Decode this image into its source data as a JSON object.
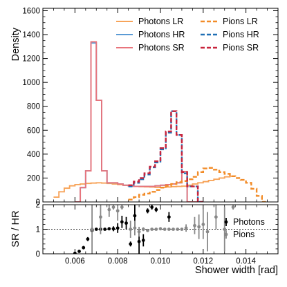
{
  "chart_data": [
    {
      "type": "line",
      "panel": "main",
      "xlabel": "Shower width [rad]",
      "ylabel": "Density",
      "xlim": [
        0.0045,
        0.0155
      ],
      "ylim": [
        0,
        1620
      ],
      "yticks": [
        "0",
        "200",
        "400",
        "600",
        "800",
        "1000",
        "1200",
        "1400",
        "1600"
      ],
      "xticks": [
        "0.006",
        "0.008",
        "0.010",
        "0.012",
        "0.014"
      ],
      "legend_position": "top-right",
      "legend_columns": 2,
      "legend": [
        "Photons LR",
        "Photons HR",
        "Photons SR",
        "Pions LR",
        "Pions HR",
        "Pions SR"
      ],
      "series": [
        {
          "name": "Photons LR",
          "color": "#f7a45a",
          "style": "solid",
          "x": [
            0.005,
            0.00525,
            0.0055,
            0.00575,
            0.006,
            0.00625,
            0.0065,
            0.00675,
            0.007,
            0.00725,
            0.0075,
            0.00775,
            0.008,
            0.00825,
            0.0085,
            0.00875,
            0.009,
            0.00925,
            0.0095,
            0.00975,
            0.01,
            0.01025,
            0.0105,
            0.01075,
            0.011,
            0.01125,
            0.0115,
            0.01175,
            0.012,
            0.01225,
            0.0125,
            0.01275,
            0.013,
            0.01325
          ],
          "y": [
            40,
            85,
            115,
            135,
            145,
            150,
            155,
            158,
            160,
            158,
            155,
            150,
            145,
            140,
            135,
            130,
            128,
            126,
            125,
            122,
            122,
            125,
            128,
            130,
            132,
            140,
            150,
            160,
            170,
            180,
            190,
            200,
            210,
            215
          ]
        },
        {
          "name": "Photons HR",
          "color": "#5b9bd5",
          "style": "solid",
          "x": [
            0.006,
            0.00625,
            0.0065,
            0.00675,
            0.007,
            0.00725,
            0.0075,
            0.00775,
            0.008,
            0.00825,
            0.0085,
            0.00875,
            0.009,
            0.00925,
            0.0095,
            0.00975,
            0.01,
            0.01025,
            0.0105,
            0.01075,
            0.011,
            0.01125,
            0.0115
          ],
          "y": [
            0,
            120,
            260,
            1330,
            850,
            260,
            160,
            160,
            150,
            140,
            135,
            130,
            130,
            130,
            130,
            135,
            140,
            145,
            150,
            160,
            255,
            0,
            0
          ]
        },
        {
          "name": "Photons SR",
          "color": "#e8747c",
          "style": "solid",
          "x": [
            0.006,
            0.00625,
            0.0065,
            0.00675,
            0.007,
            0.00725,
            0.0075,
            0.00775,
            0.008,
            0.00825,
            0.0085,
            0.00875,
            0.009,
            0.00925,
            0.0095,
            0.00975,
            0.01,
            0.01025,
            0.0105,
            0.01075,
            0.011,
            0.01125,
            0.0115
          ],
          "y": [
            0,
            120,
            260,
            1340,
            850,
            260,
            160,
            160,
            150,
            140,
            135,
            130,
            130,
            130,
            130,
            135,
            140,
            145,
            150,
            160,
            255,
            0,
            0
          ]
        },
        {
          "name": "Pions LR",
          "color": "#f28c28",
          "style": "dashed",
          "x": [
            0.0085,
            0.00875,
            0.009,
            0.00925,
            0.0095,
            0.00975,
            0.01,
            0.01025,
            0.0105,
            0.01075,
            0.011,
            0.01125,
            0.0115,
            0.01175,
            0.012,
            0.01225,
            0.0125,
            0.01275,
            0.013,
            0.01325,
            0.0135,
            0.01375,
            0.014,
            0.01425,
            0.0145,
            0.01475
          ],
          "y": [
            20,
            40,
            60,
            70,
            85,
            100,
            120,
            135,
            150,
            165,
            175,
            190,
            210,
            250,
            280,
            285,
            270,
            250,
            235,
            215,
            200,
            185,
            160,
            110,
            50,
            0
          ]
        },
        {
          "name": "Pions HR",
          "color": "#1f6fb4",
          "style": "dashed",
          "x": [
            0.0085,
            0.00875,
            0.009,
            0.00925,
            0.0095,
            0.00975,
            0.01,
            0.01025,
            0.0105,
            0.01075,
            0.011,
            0.01125,
            0.0115,
            0.01175
          ],
          "y": [
            130,
            160,
            190,
            230,
            290,
            330,
            440,
            580,
            760,
            560,
            240,
            130,
            130,
            0
          ]
        },
        {
          "name": "Pions SR",
          "color": "#c8243c",
          "style": "dashed",
          "x": [
            0.0085,
            0.00875,
            0.009,
            0.00925,
            0.0095,
            0.00975,
            0.01,
            0.01025,
            0.0105,
            0.01075,
            0.011,
            0.01125,
            0.0115,
            0.01175
          ],
          "y": [
            140,
            170,
            200,
            240,
            295,
            340,
            450,
            590,
            760,
            560,
            250,
            130,
            130,
            0
          ]
        }
      ]
    },
    {
      "type": "scatter",
      "panel": "ratio",
      "xlabel": "Shower width [rad]",
      "ylabel": "SR / HR",
      "xlim": [
        0.0045,
        0.0155
      ],
      "ylim": [
        0,
        2
      ],
      "yticks": [
        "0",
        "1",
        "2"
      ],
      "xticks": [
        "0.006",
        "0.008",
        "0.010",
        "0.012",
        "0.014"
      ],
      "reference_line": 1,
      "legend_position": "right",
      "legend": [
        "Photons",
        "Pions"
      ],
      "series": [
        {
          "name": "Photons",
          "color": "#000000",
          "x": [
            0.006,
            0.0062,
            0.0064,
            0.0066,
            0.0068,
            0.007,
            0.0072,
            0.0074,
            0.0076,
            0.0078,
            0.008,
            0.0082,
            0.0084,
            0.0086,
            0.0088,
            0.009,
            0.0092,
            0.0094,
            0.0096,
            0.0098,
            0.0104
          ],
          "y": [
            0.02,
            0.1,
            0.25,
            0.6,
            0.95,
            1.0,
            1.0,
            1.0,
            1.02,
            1.02,
            1.05,
            1.3,
            1.25,
            0.4,
            1.55,
            0.5,
            0.55,
            1.75,
            1.9,
            1.8,
            1.5
          ],
          "err": [
            0.02,
            0.05,
            0.07,
            0.08,
            0.05,
            0.03,
            0.02,
            0.02,
            0.05,
            0.1,
            0.2,
            0.25,
            0.25,
            0.1,
            0.45,
            0.5,
            0.25,
            0.1,
            0.1,
            0.1,
            0.2
          ]
        },
        {
          "name": "Pions",
          "color": "#888888",
          "x": [
            0.0068,
            0.0072,
            0.0076,
            0.0078,
            0.008,
            0.0082,
            0.0086,
            0.0088,
            0.009,
            0.0092,
            0.0094,
            0.0096,
            0.0098,
            0.01,
            0.0102,
            0.0104,
            0.0106,
            0.0108,
            0.011,
            0.0112,
            0.0116,
            0.0118,
            0.012,
            0.0122,
            0.0126,
            0.013,
            0.0134
          ],
          "y": [
            1.0,
            1.5,
            1.8,
            1.9,
            1.75,
            1.9,
            1.0,
            1.05,
            0.9,
            1.0,
            0.95,
            1.0,
            1.0,
            1.02,
            1.0,
            1.0,
            1.0,
            1.0,
            1.0,
            1.05,
            1.15,
            1.1,
            1.2,
            0.9,
            1.5,
            1.0,
            1.9
          ],
          "err": [
            1.0,
            0.7,
            0.3,
            0.1,
            0.4,
            0.1,
            0.35,
            0.3,
            0.2,
            0.08,
            0.05,
            0.04,
            0.03,
            0.03,
            0.03,
            0.03,
            0.04,
            0.05,
            0.06,
            0.15,
            0.35,
            0.5,
            0.6,
            0.8,
            0.5,
            0.9,
            0.1
          ]
        }
      ]
    }
  ]
}
